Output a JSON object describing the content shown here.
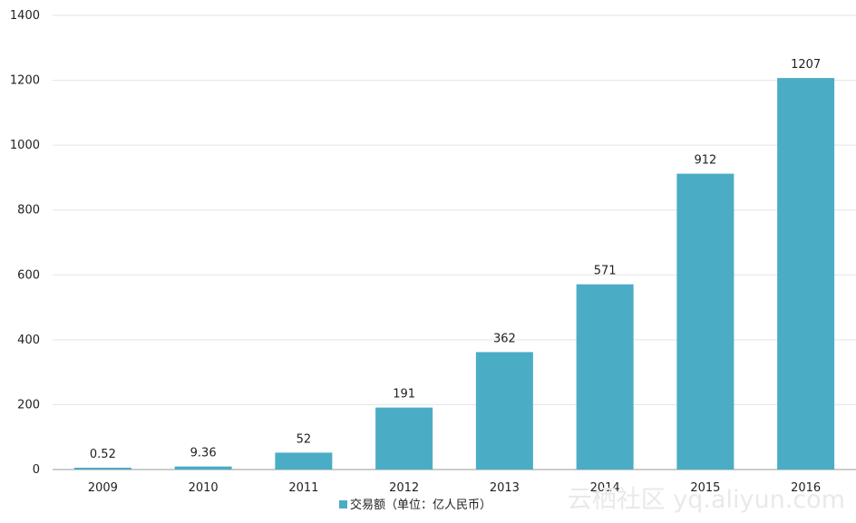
{
  "chart_data": {
    "type": "bar",
    "categories": [
      "2009",
      "2010",
      "2011",
      "2012",
      "2013",
      "2014",
      "2015",
      "2016"
    ],
    "series": [
      {
        "name": "交易额（单位：亿人民币）",
        "values": [
          0.52,
          9.36,
          52,
          191,
          362,
          571,
          912,
          1207
        ],
        "value_labels": [
          "0.52",
          "9.36",
          "52",
          "191",
          "362",
          "571",
          "912",
          "1207"
        ]
      }
    ],
    "ylim": [
      0,
      1400
    ],
    "yticks": [
      0,
      200,
      400,
      600,
      800,
      1000,
      1200,
      1400
    ],
    "grid": true,
    "legend_position": "bottom",
    "bar_color": "#4BACC6",
    "grid_color": "#E3E3E3",
    "axis_color": "#9A9A9A"
  },
  "watermark": "云栖社区 yq.aliyun.com"
}
